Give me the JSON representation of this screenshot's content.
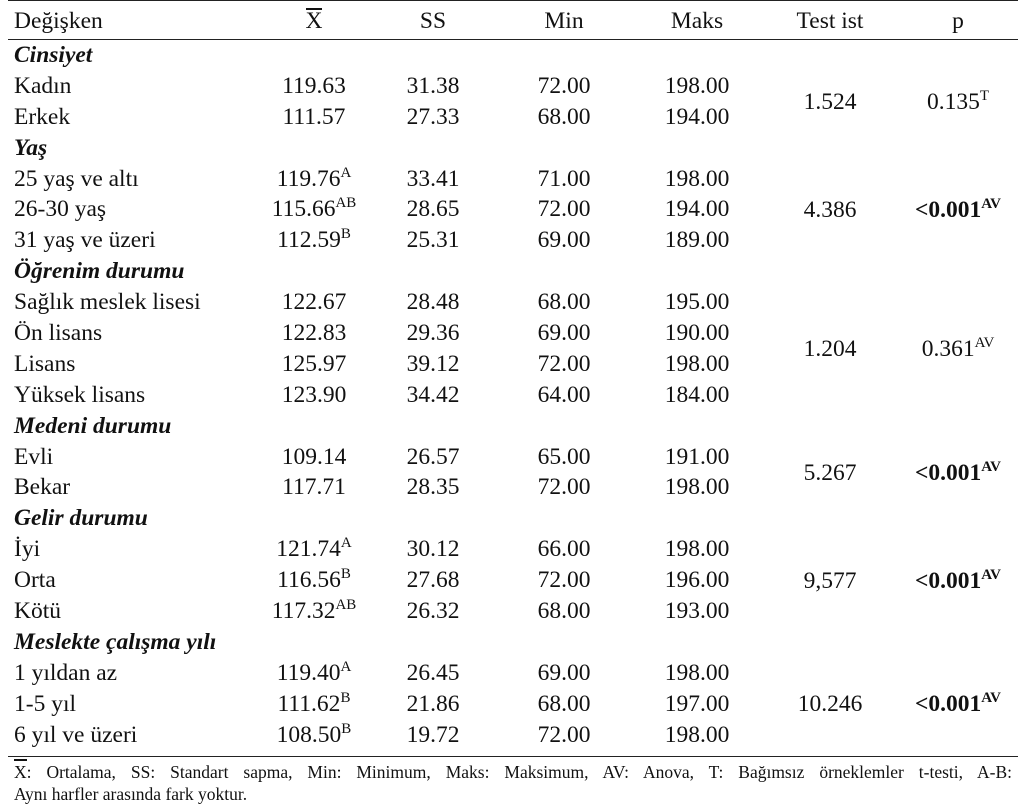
{
  "header": {
    "var": "Değişken",
    "mean": "X",
    "ss": "SS",
    "min": "Min",
    "maks": "Maks",
    "test": "Test ist",
    "p": "p"
  },
  "groups": [
    {
      "title": "Cinsiyet",
      "test": "1.524",
      "p": "0.135",
      "p_sup": "T",
      "p_bold": false,
      "rows": [
        {
          "label": "Kadın",
          "mean": "119.63",
          "sup": "",
          "ss": "31.38",
          "min": "72.00",
          "maks": "198.00"
        },
        {
          "label": "Erkek",
          "mean": "111.57",
          "sup": "",
          "ss": "27.33",
          "min": "68.00",
          "maks": "194.00"
        }
      ]
    },
    {
      "title": "Yaş",
      "test": "4.386",
      "p": "<0.001",
      "p_sup": "AV",
      "p_bold": true,
      "rows": [
        {
          "label": "25 yaş ve altı",
          "mean": "119.76",
          "sup": "A",
          "ss": "33.41",
          "min": "71.00",
          "maks": "198.00"
        },
        {
          "label": "26-30 yaş",
          "mean": "115.66",
          "sup": "AB",
          "ss": "28.65",
          "min": "72.00",
          "maks": "194.00"
        },
        {
          "label": "31 yaş ve üzeri",
          "mean": "112.59",
          "sup": "B",
          "ss": "25.31",
          "min": "69.00",
          "maks": "189.00"
        }
      ]
    },
    {
      "title": "Öğrenim durumu",
      "test": "1.204",
      "p": "0.361",
      "p_sup": "AV",
      "p_bold": false,
      "rows": [
        {
          "label": "Sağlık meslek lisesi",
          "mean": "122.67",
          "sup": "",
          "ss": "28.48",
          "min": "68.00",
          "maks": "195.00"
        },
        {
          "label": "Ön lisans",
          "mean": "122.83",
          "sup": "",
          "ss": "29.36",
          "min": "69.00",
          "maks": "190.00"
        },
        {
          "label": "Lisans",
          "mean": "125.97",
          "sup": "",
          "ss": "39.12",
          "min": "72.00",
          "maks": "198.00"
        },
        {
          "label": "Yüksek lisans",
          "mean": "123.90",
          "sup": "",
          "ss": "34.42",
          "min": "64.00",
          "maks": "184.00"
        }
      ]
    },
    {
      "title": "Medeni durumu",
      "test": "5.267",
      "p": "<0.001",
      "p_sup": "AV",
      "p_bold": true,
      "rows": [
        {
          "label": "Evli",
          "mean": "109.14",
          "sup": "",
          "ss": "26.57",
          "min": "65.00",
          "maks": "191.00"
        },
        {
          "label": "Bekar",
          "mean": "117.71",
          "sup": "",
          "ss": "28.35",
          "min": "72.00",
          "maks": "198.00"
        }
      ]
    },
    {
      "title": "Gelir durumu",
      "test": "9,577",
      "p": "<0.001",
      "p_sup": "AV",
      "p_bold": true,
      "rows": [
        {
          "label": "İyi",
          "mean": "121.74",
          "sup": "A",
          "ss": "30.12",
          "min": "66.00",
          "maks": "198.00"
        },
        {
          "label": "Orta",
          "mean": "116.56",
          "sup": "B",
          "ss": "27.68",
          "min": "72.00",
          "maks": "196.00"
        },
        {
          "label": "Kötü",
          "mean": "117.32",
          "sup": "AB",
          "ss": "26.32",
          "min": "68.00",
          "maks": "193.00"
        }
      ]
    },
    {
      "title": "Meslekte çalışma yılı",
      "test": "10.246",
      "p": "<0.001",
      "p_sup": "AV",
      "p_bold": true,
      "rows": [
        {
          "label": "1 yıldan az",
          "mean": "119.40",
          "sup": "A",
          "ss": "26.45",
          "min": "69.00",
          "maks": "198.00"
        },
        {
          "label": "1-5 yıl",
          "mean": "111.62",
          "sup": "B",
          "ss": "21.86",
          "min": "68.00",
          "maks": "197.00"
        },
        {
          "label": "6 yıl ve üzeri",
          "mean": "108.50",
          "sup": "B",
          "ss": "19.72",
          "min": "72.00",
          "maks": "198.00"
        }
      ]
    }
  ],
  "footer": {
    "mean_symbol": "X",
    "line1": ": Ortalama, SS: Standart sapma, Min: Minimum, Maks: Maksimum, AV: Anova, T: Bağımsız örneklemler t-testi, A-B:",
    "line2": "Aynı harfler arasında fark yoktur."
  }
}
